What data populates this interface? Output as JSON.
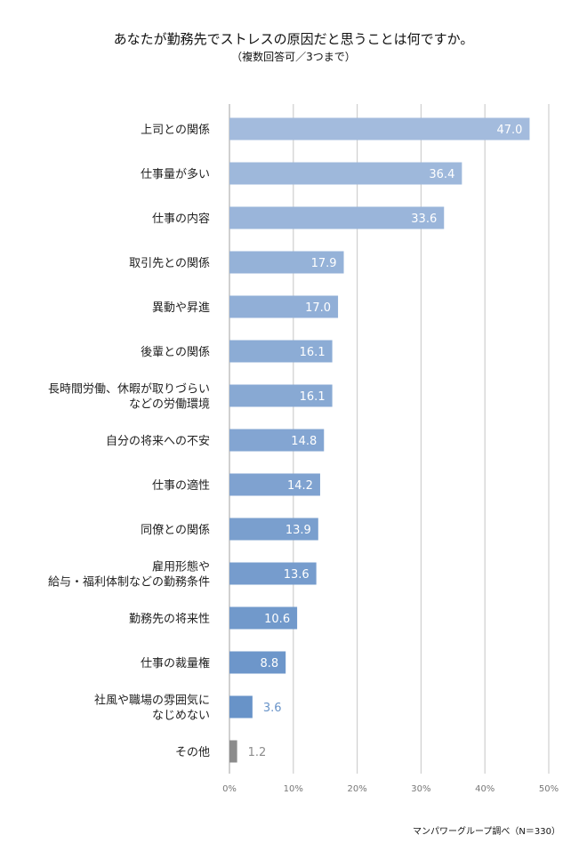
{
  "chart_data": {
    "type": "bar",
    "orientation": "horizontal",
    "title": "あなたが勤務先でストレスの原因だと思うことは何ですか。",
    "subtitle": "（複数回答可／3つまで）",
    "categories": [
      [
        "上司との関係"
      ],
      [
        "仕事量が多い"
      ],
      [
        "仕事の内容"
      ],
      [
        "取引先との関係"
      ],
      [
        "異動や昇進"
      ],
      [
        "後輩との関係"
      ],
      [
        "長時間労働、休暇が取りづらい",
        "などの労働環境"
      ],
      [
        "自分の将来への不安"
      ],
      [
        "仕事の適性"
      ],
      [
        "同僚との関係"
      ],
      [
        "雇用形態や",
        "給与・福利体制などの勤務条件"
      ],
      [
        "勤務先の将来性"
      ],
      [
        "仕事の裁量権"
      ],
      [
        "社風や職場の雰囲気に",
        "なじめない"
      ],
      [
        "その他"
      ]
    ],
    "values": [
      47.0,
      36.4,
      33.6,
      17.9,
      17.0,
      16.1,
      16.1,
      14.8,
      14.2,
      13.9,
      13.6,
      10.6,
      8.8,
      3.6,
      1.2
    ],
    "value_labels": [
      "47.0",
      "36.4",
      "33.6",
      "17.9",
      "17.0",
      "16.1",
      "16.1",
      "14.8",
      "14.2",
      "13.9",
      "13.6",
      "10.6",
      "8.8",
      "3.6",
      "1.2"
    ],
    "xlim": [
      0,
      50
    ],
    "xticks": [
      "0%",
      "10%",
      "20%",
      "30%",
      "40%",
      "50%"
    ],
    "grid": true,
    "colors": {
      "bar_start": "#a3bbdd",
      "bar_end": "#6893c8",
      "other": "#8c8c8c"
    },
    "source": "マンパワーグループ調べ（N＝330）"
  }
}
